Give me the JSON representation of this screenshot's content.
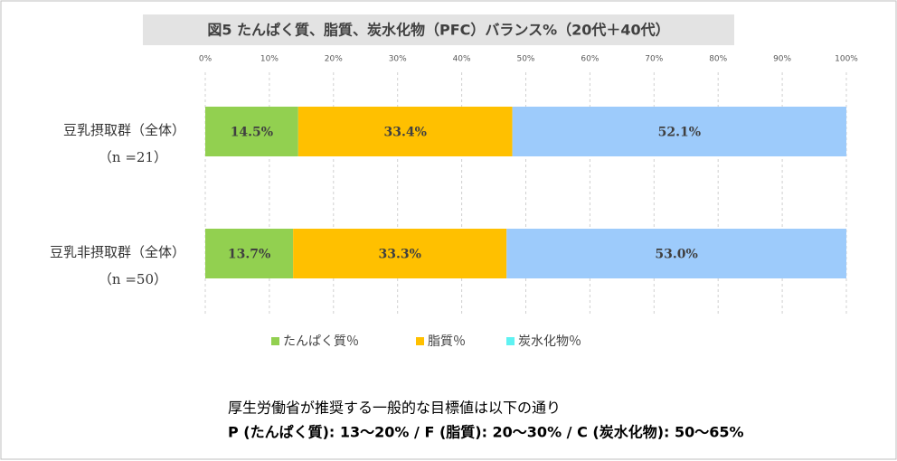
{
  "chart_data": {
    "type": "stacked-bar-horizontal",
    "title": "図5 たんぱく質、脂質、炭水化物（PFC）バランス%（20代＋40代）",
    "categories": [
      "豆乳摂取群（全体）",
      "豆乳非摂取群（全体）"
    ],
    "category_notes": [
      "（n =21）",
      "（n =50）"
    ],
    "series": [
      {
        "name": "たんぱく質％",
        "color": "#92d050",
        "marker_color": "#92d050",
        "values": [
          14.5,
          13.7
        ],
        "value_labels": [
          "14.5%",
          "13.7%"
        ]
      },
      {
        "name": "脂質％",
        "color": "#ffc000",
        "marker_color": "#ffc000",
        "values": [
          33.4,
          33.3
        ],
        "value_labels": [
          "33.4%",
          "33.3%"
        ]
      },
      {
        "name": "炭水化物％",
        "color": "#9dcbfb",
        "marker_color": "#5ff2f2",
        "values": [
          52.1,
          53.0
        ],
        "value_labels": [
          "52.1%",
          "53.0%"
        ]
      }
    ],
    "xlim": [
      0,
      100
    ],
    "xticks": [
      {
        "value": 0,
        "label": "0%"
      },
      {
        "value": 10,
        "label": "10%"
      },
      {
        "value": 20,
        "label": "20%"
      },
      {
        "value": 30,
        "label": "30%"
      },
      {
        "value": 40,
        "label": "40%"
      },
      {
        "value": 50,
        "label": "50%"
      },
      {
        "value": 60,
        "label": "60%"
      },
      {
        "value": 70,
        "label": "70%"
      },
      {
        "value": 80,
        "label": "80%"
      },
      {
        "value": 90,
        "label": "90%"
      },
      {
        "value": 100,
        "label": "100%"
      }
    ],
    "grid": true,
    "legend": "bottom",
    "notes": [
      "厚生労働省が推奨する一般的な目標値は以下の通り",
      "P (たんぱく質): 13〜20%  /  F (脂質): 20〜30%  /  C (炭水化物): 50〜65%"
    ]
  }
}
